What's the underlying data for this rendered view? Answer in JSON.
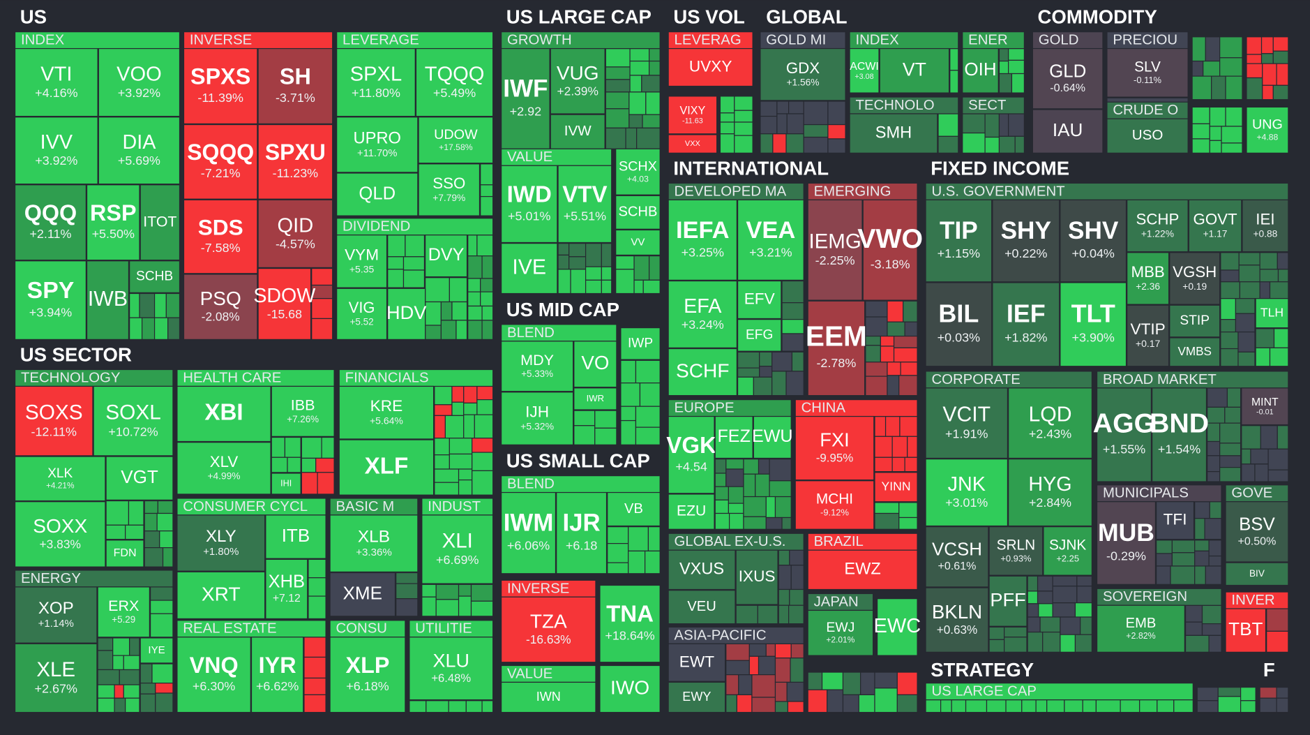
{
  "sections": [
    {
      "title": "US",
      "groups": [
        {
          "title": "INDEX",
          "tiles": [
            {
              "ticker": "VTI",
              "change": "+4.16%"
            },
            {
              "ticker": "VOO",
              "change": "+3.92%"
            },
            {
              "ticker": "IVV",
              "change": "+3.92%"
            },
            {
              "ticker": "DIA",
              "change": "+5.69%"
            },
            {
              "ticker": "QQQ",
              "change": "+2.11%"
            },
            {
              "ticker": "RSP",
              "change": "+5.50%"
            },
            {
              "ticker": "ITOT"
            },
            {
              "ticker": "SPY",
              "change": "+3.94%"
            },
            {
              "ticker": "IWB"
            },
            {
              "ticker": "SCHB"
            }
          ]
        },
        {
          "title": "INVERSE",
          "tiles": [
            {
              "ticker": "SPXS",
              "change": "-11.39%"
            },
            {
              "ticker": "SH",
              "change": "-3.71%"
            },
            {
              "ticker": "SQQQ",
              "change": "-7.21%"
            },
            {
              "ticker": "SPXU",
              "change": "-11.23%"
            },
            {
              "ticker": "SDS",
              "change": "-7.58%"
            },
            {
              "ticker": "QID",
              "change": "-4.57%"
            },
            {
              "ticker": "PSQ",
              "change": "-2.08%"
            },
            {
              "ticker": "SDOW",
              "change": "-15.68"
            }
          ]
        },
        {
          "title": "LEVERAGE",
          "tiles": [
            {
              "ticker": "SPXL",
              "change": "+11.80%"
            },
            {
              "ticker": "TQQQ",
              "change": "+5.49%"
            },
            {
              "ticker": "UPRO",
              "change": "+11.70%"
            },
            {
              "ticker": "UDOW",
              "change": "+17.58%"
            },
            {
              "ticker": "QLD"
            },
            {
              "ticker": "SSO",
              "change": "+7.79%"
            }
          ]
        },
        {
          "title": "DIVIDEND",
          "tiles": [
            {
              "ticker": "VYM",
              "change": "+5.35"
            },
            {
              "ticker": "VIG",
              "change": "+5.52"
            },
            {
              "ticker": "HDV"
            },
            {
              "ticker": "DVY"
            }
          ]
        }
      ]
    },
    {
      "title": "US SECTOR",
      "groups": [
        {
          "title": "TECHNOLOGY",
          "tiles": [
            {
              "ticker": "SOXS",
              "change": "-12.11%"
            },
            {
              "ticker": "SOXL",
              "change": "+10.72%"
            },
            {
              "ticker": "XLK",
              "change": "+4.21%"
            },
            {
              "ticker": "VGT"
            },
            {
              "ticker": "SOXX",
              "change": "+3.83%"
            },
            {
              "ticker": "FDN"
            }
          ]
        },
        {
          "title": "ENERGY",
          "tiles": [
            {
              "ticker": "XOP",
              "change": "+1.14%"
            },
            {
              "ticker": "ERX",
              "change": "+5.29"
            },
            {
              "ticker": "IYE"
            },
            {
              "ticker": "XLE",
              "change": "+2.67%"
            }
          ]
        },
        {
          "title": "HEALTH CARE",
          "tiles": [
            {
              "ticker": "XBI"
            },
            {
              "ticker": "IBB",
              "change": "+7.26%"
            },
            {
              "ticker": "XLV",
              "change": "+4.99%"
            },
            {
              "ticker": "IHI"
            }
          ]
        },
        {
          "title": "CONSUMER CYCL",
          "tiles": [
            {
              "ticker": "XLY",
              "change": "+1.80%"
            },
            {
              "ticker": "ITB"
            },
            {
              "ticker": "XRT"
            },
            {
              "ticker": "XHB",
              "change": "+7.12"
            }
          ]
        },
        {
          "title": "REAL ESTATE",
          "tiles": [
            {
              "ticker": "VNQ",
              "change": "+6.30%"
            },
            {
              "ticker": "IYR",
              "change": "+6.62%"
            }
          ]
        },
        {
          "title": "FINANCIALS",
          "tiles": [
            {
              "ticker": "KRE",
              "change": "+5.64%"
            },
            {
              "ticker": "XLF"
            }
          ]
        },
        {
          "title": "BASIC M",
          "tiles": [
            {
              "ticker": "XLB",
              "change": "+3.36%"
            },
            {
              "ticker": "XME"
            }
          ]
        },
        {
          "title": "INDUST",
          "tiles": [
            {
              "ticker": "XLI",
              "change": "+6.69%"
            }
          ]
        },
        {
          "title": "CONSU",
          "tiles": [
            {
              "ticker": "XLP",
              "change": "+6.18%"
            }
          ]
        },
        {
          "title": "UTILITIE",
          "tiles": [
            {
              "ticker": "XLU",
              "change": "+6.48%"
            }
          ]
        }
      ]
    },
    {
      "title": "US LARGE CAP",
      "groups": [
        {
          "title": "GROWTH",
          "tiles": [
            {
              "ticker": "IWF",
              "change": "+2.92"
            },
            {
              "ticker": "VUG",
              "change": "+2.39%"
            },
            {
              "ticker": "IVW"
            }
          ]
        },
        {
          "title": "VALUE",
          "tiles": [
            {
              "ticker": "IWD",
              "change": "+5.01%"
            },
            {
              "ticker": "VTV",
              "change": "+5.51%"
            },
            {
              "ticker": "IVE"
            },
            {
              "ticker": "SCHX",
              "change": "+4.03"
            },
            {
              "ticker": "SCHB"
            },
            {
              "ticker": "VV"
            }
          ]
        }
      ]
    },
    {
      "title": "US MID CAP",
      "groups": [
        {
          "title": "BLEND",
          "tiles": [
            {
              "ticker": "MDY",
              "change": "+5.33%"
            },
            {
              "ticker": "VO"
            },
            {
              "ticker": "IJH",
              "change": "+5.32%"
            },
            {
              "ticker": "IWR"
            },
            {
              "ticker": "IWP"
            }
          ]
        }
      ]
    },
    {
      "title": "US SMALL CAP",
      "groups": [
        {
          "title": "BLEND",
          "tiles": [
            {
              "ticker": "IWM",
              "change": "+6.06%"
            },
            {
              "ticker": "IJR",
              "change": "+6.18"
            },
            {
              "ticker": "VB"
            }
          ]
        },
        {
          "title": "INVERSE",
          "tiles": [
            {
              "ticker": "TZA",
              "change": "-16.63%"
            },
            {
              "ticker": "TNA",
              "change": "+18.64%"
            }
          ]
        },
        {
          "title": "VALUE",
          "tiles": [
            {
              "ticker": "IWN"
            },
            {
              "ticker": "IWO"
            }
          ]
        }
      ]
    },
    {
      "title": "US VOL",
      "groups": [
        {
          "title": "LEVERAG",
          "tiles": [
            {
              "ticker": "UVXY"
            },
            {
              "ticker": "VIXY",
              "change": "-11.63"
            },
            {
              "ticker": "VXX"
            }
          ]
        }
      ]
    },
    {
      "title": "GLOBAL",
      "groups": [
        {
          "title": "GOLD MI",
          "tiles": [
            {
              "ticker": "GDX",
              "change": "+1.56%"
            }
          ]
        },
        {
          "title": "INDEX",
          "tiles": [
            {
              "ticker": "ACWI",
              "change": "+3.08"
            },
            {
              "ticker": "VT"
            }
          ]
        },
        {
          "title": "TECHNOLO",
          "tiles": [
            {
              "ticker": "SMH"
            }
          ]
        },
        {
          "title": "ENER",
          "tiles": [
            {
              "ticker": "OIH"
            }
          ]
        },
        {
          "title": "SECT"
        }
      ]
    },
    {
      "title": "COMMODITY",
      "groups": [
        {
          "title": "GOLD",
          "tiles": [
            {
              "ticker": "GLD",
              "change": "-0.64%"
            },
            {
              "ticker": "IAU"
            }
          ]
        },
        {
          "title": "PRECIOU",
          "tiles": [
            {
              "ticker": "SLV",
              "change": "-0.11%"
            }
          ]
        },
        {
          "title": "CRUDE O",
          "tiles": [
            {
              "ticker": "USO"
            },
            {
              "ticker": "UNG",
              "change": "+4.88"
            }
          ]
        }
      ]
    },
    {
      "title": "INTERNATIONAL",
      "groups": [
        {
          "title": "DEVELOPED MA",
          "tiles": [
            {
              "ticker": "IEFA",
              "change": "+3.25%"
            },
            {
              "ticker": "VEA",
              "change": "+3.21%"
            },
            {
              "ticker": "EFA",
              "change": "+3.24%"
            },
            {
              "ticker": "EFV"
            },
            {
              "ticker": "EFG"
            },
            {
              "ticker": "SCHF"
            }
          ]
        },
        {
          "title": "EMERGING",
          "tiles": [
            {
              "ticker": "IEMG",
              "change": "-2.25%"
            },
            {
              "ticker": "VWO",
              "change": "-3.18%"
            },
            {
              "ticker": "EEM",
              "change": "-2.78%"
            }
          ]
        },
        {
          "title": "EUROPE",
          "tiles": [
            {
              "ticker": "VGK",
              "change": "+4.54"
            },
            {
              "ticker": "FEZ"
            },
            {
              "ticker": "EWU"
            },
            {
              "ticker": "EZU"
            }
          ]
        },
        {
          "title": "CHINA",
          "tiles": [
            {
              "ticker": "FXI",
              "change": "-9.95%"
            },
            {
              "ticker": "MCHI",
              "change": "-9.12%"
            },
            {
              "ticker": "YINN"
            }
          ]
        },
        {
          "title": "GLOBAL EX-U.S.",
          "tiles": [
            {
              "ticker": "VXUS"
            },
            {
              "ticker": "IXUS"
            },
            {
              "ticker": "VEU"
            }
          ]
        },
        {
          "title": "ASIA-PACIFIC",
          "tiles": [
            {
              "ticker": "EWT"
            },
            {
              "ticker": "EWY"
            }
          ]
        },
        {
          "title": "BRAZIL",
          "tiles": [
            {
              "ticker": "EWZ"
            }
          ]
        },
        {
          "title": "JAPAN",
          "tiles": [
            {
              "ticker": "EWJ",
              "change": "+2.01%"
            },
            {
              "ticker": "EWC"
            }
          ]
        }
      ]
    },
    {
      "title": "FIXED INCOME",
      "groups": [
        {
          "title": "U.S. GOVERNMENT",
          "tiles": [
            {
              "ticker": "TIP",
              "change": "+1.15%"
            },
            {
              "ticker": "SHY",
              "change": "+0.22%"
            },
            {
              "ticker": "SHV",
              "change": "+0.04%"
            },
            {
              "ticker": "SCHP",
              "change": "+1.22%"
            },
            {
              "ticker": "GOVT",
              "change": "+1.17"
            },
            {
              "ticker": "IEI",
              "change": "+0.88"
            },
            {
              "ticker": "BIL",
              "change": "+0.03%"
            },
            {
              "ticker": "IEF",
              "change": "+1.82%"
            },
            {
              "ticker": "TLT",
              "change": "+3.90%"
            },
            {
              "ticker": "MBB",
              "change": "+2.36"
            },
            {
              "ticker": "VGSH",
              "change": "+0.19"
            },
            {
              "ticker": "STIP"
            },
            {
              "ticker": "VTIP",
              "change": "+0.17"
            },
            {
              "ticker": "VMBS"
            },
            {
              "ticker": "TLH"
            }
          ]
        },
        {
          "title": "CORPORATE",
          "tiles": [
            {
              "ticker": "VCIT",
              "change": "+1.91%"
            },
            {
              "ticker": "LQD",
              "change": "+2.43%"
            },
            {
              "ticker": "JNK",
              "change": "+3.01%"
            },
            {
              "ticker": "HYG",
              "change": "+2.84%"
            },
            {
              "ticker": "VCSH",
              "change": "+0.61%"
            },
            {
              "ticker": "SRLN",
              "change": "+0.93%"
            },
            {
              "ticker": "SJNK",
              "change": "+2.25"
            },
            {
              "ticker": "BKLN",
              "change": "+0.63%"
            },
            {
              "ticker": "PFF"
            }
          ]
        },
        {
          "title": "BROAD MARKET",
          "tiles": [
            {
              "ticker": "AGG",
              "change": "+1.55%"
            },
            {
              "ticker": "BND",
              "change": "+1.54%"
            },
            {
              "ticker": "MINT",
              "change": "-0.01"
            }
          ]
        },
        {
          "title": "MUNICIPALS",
          "tiles": [
            {
              "ticker": "MUB",
              "change": "-0.29%"
            },
            {
              "ticker": "TFI"
            }
          ]
        },
        {
          "title": "GOVE",
          "tiles": [
            {
              "ticker": "BSV",
              "change": "+0.50%"
            },
            {
              "ticker": "BIV"
            }
          ]
        },
        {
          "title": "SOVEREIGN",
          "tiles": [
            {
              "ticker": "EMB",
              "change": "+2.82%"
            }
          ]
        },
        {
          "title": "INVER",
          "tiles": [
            {
              "ticker": "TBT"
            }
          ]
        }
      ]
    },
    {
      "title": "STRATEGY",
      "groups": [
        {
          "title": "US LARGE CAP"
        }
      ]
    },
    {
      "title": "F"
    }
  ]
}
